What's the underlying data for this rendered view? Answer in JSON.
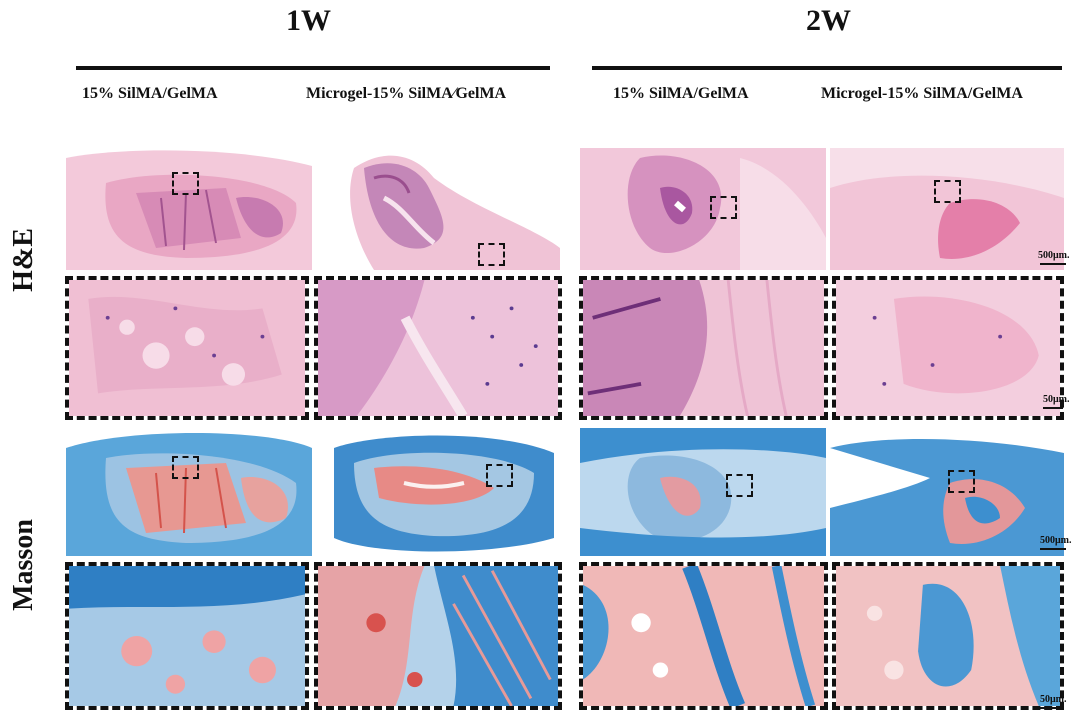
{
  "weeks": [
    "1W",
    "2W"
  ],
  "groups": [
    "15% SilMA/GelMA",
    "Microgel-15% SilMA∕GelMA",
    "15% SilMA/GelMA",
    "Microgel-15% SilMA/GelMA"
  ],
  "rows": [
    "H&E",
    "Masson"
  ],
  "scale_bars": {
    "he_overview": "500μm.",
    "he_zoom": "50μm.",
    "masson_overview": "500μm.",
    "masson_zoom": "50μm."
  },
  "colors": {
    "he_pink": "#e9a7c4",
    "he_purple": "#b66aa8",
    "masson_blue": "#3d8fcf",
    "masson_red": "#e88a86"
  }
}
